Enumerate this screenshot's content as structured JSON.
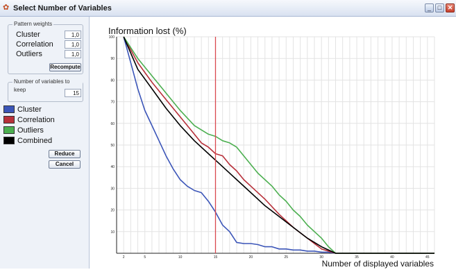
{
  "window": {
    "title": "Select Number of Variables",
    "minimize": "_",
    "maximize": "□",
    "close": "✕"
  },
  "sidebar": {
    "weights_group_title": "Pattern weights",
    "weights": [
      {
        "label": "Cluster",
        "value": "1,0"
      },
      {
        "label": "Correlation",
        "value": "1,0"
      },
      {
        "label": "Outliers",
        "value": "1,0"
      }
    ],
    "recompute_label": "Recompute",
    "keep_group_title": "Number of variables to keep",
    "keep_value": "15",
    "legend": [
      {
        "label": "Cluster",
        "color": "#3b55b8"
      },
      {
        "label": "Correlation",
        "color": "#b8303a"
      },
      {
        "label": "Outliers",
        "color": "#4caf50"
      },
      {
        "label": "Combined",
        "color": "#000000"
      }
    ],
    "reduce_label": "Reduce",
    "cancel_label": "Cancel"
  },
  "chart_data": {
    "type": "line",
    "title": "",
    "ylabel": "Information lost (%)",
    "xlabel": "Number of displayed variables",
    "xlim": [
      1,
      46
    ],
    "ylim": [
      0,
      100
    ],
    "x_ticks": [
      2,
      5,
      10,
      15,
      20,
      25,
      30,
      35,
      40,
      45
    ],
    "y_ticks": [
      10,
      20,
      30,
      40,
      50,
      60,
      70,
      80,
      90,
      100
    ],
    "grid": true,
    "marker_x": 15,
    "marker_color": "#d9484f",
    "series": [
      {
        "name": "Cluster",
        "color": "#3b55b8",
        "x": [
          2,
          3,
          4,
          5,
          6,
          7,
          8,
          9,
          10,
          11,
          12,
          13,
          14,
          15,
          16,
          17,
          18,
          19,
          20,
          21,
          22,
          23,
          24,
          25,
          26,
          27,
          28,
          29,
          30,
          31,
          32,
          46
        ],
        "y": [
          100,
          88,
          76,
          66,
          59,
          52,
          45,
          39,
          34,
          31,
          29,
          28,
          24,
          19,
          13,
          10,
          5,
          4.5,
          4.5,
          4,
          3,
          3,
          2,
          2,
          1.5,
          1.5,
          1,
          1,
          0.5,
          0.5,
          0,
          0
        ]
      },
      {
        "name": "Correlation",
        "color": "#b8303a",
        "x": [
          2,
          4,
          6,
          8,
          10,
          12,
          13,
          14,
          15,
          16,
          17,
          18,
          19,
          20,
          22,
          24,
          26,
          28,
          30,
          32,
          46
        ],
        "y": [
          100,
          88,
          79,
          71,
          63,
          55,
          51,
          49,
          46,
          45,
          41,
          38,
          34,
          31,
          25,
          18,
          12,
          7,
          2,
          0,
          0
        ]
      },
      {
        "name": "Outliers",
        "color": "#4caf50",
        "x": [
          2,
          4,
          6,
          8,
          10,
          12,
          13,
          14,
          15,
          16,
          17,
          18,
          19,
          20,
          21,
          22,
          23,
          24,
          25,
          26,
          27,
          28,
          29,
          30,
          31,
          32,
          46
        ],
        "y": [
          100,
          90,
          82,
          74,
          66,
          59,
          57,
          55,
          54,
          52,
          51,
          49,
          45,
          41,
          37,
          34,
          31,
          27,
          24,
          20,
          17,
          13,
          10,
          7,
          3,
          0,
          0
        ]
      },
      {
        "name": "Combined",
        "color": "#000000",
        "x": [
          2,
          4,
          6,
          8,
          10,
          12,
          14,
          16,
          18,
          20,
          22,
          24,
          26,
          28,
          30,
          32,
          46
        ],
        "y": [
          100,
          85,
          76,
          67,
          59,
          52,
          46,
          40,
          34,
          28,
          22,
          17,
          12,
          7,
          3,
          0,
          0
        ]
      }
    ]
  }
}
